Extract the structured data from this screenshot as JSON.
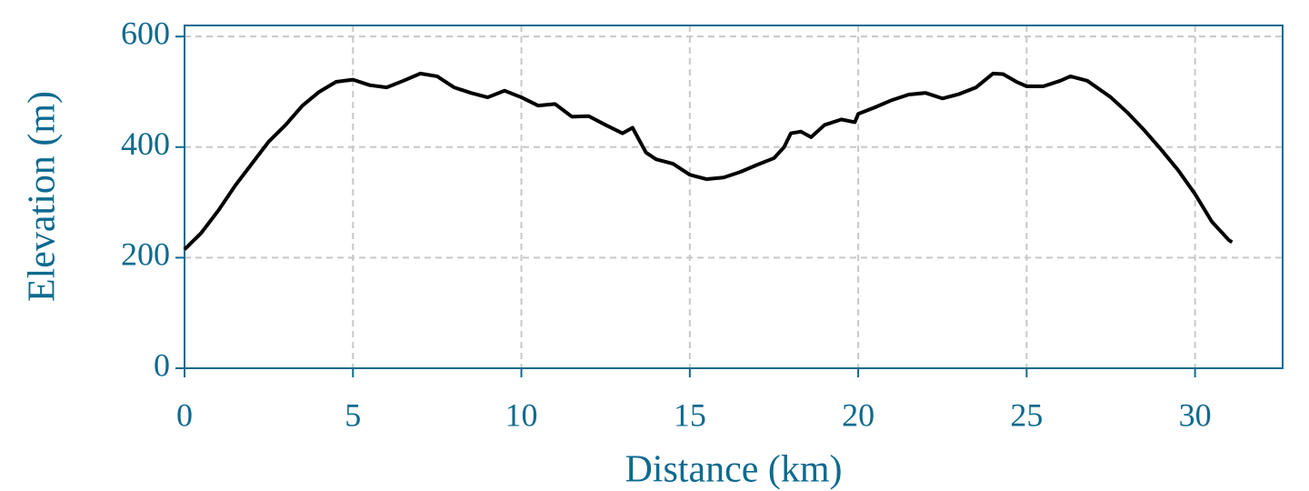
{
  "chart_data": {
    "type": "line",
    "x_label": "Distance (km)",
    "y_label": "Elevation (m)",
    "x": [
      0,
      0.5,
      1,
      1.5,
      2,
      2.5,
      3,
      3.5,
      4,
      4.5,
      5,
      5.5,
      6,
      6.5,
      7,
      7.5,
      8,
      8.5,
      9,
      9.5,
      10,
      10.5,
      11,
      11.5,
      12,
      12.5,
      13,
      13.3,
      13.7,
      14,
      14.5,
      15,
      15.5,
      16,
      16.5,
      17,
      17.5,
      17.8,
      18,
      18.3,
      18.6,
      19,
      19.5,
      19.9,
      20,
      20.5,
      21,
      21.5,
      22,
      22.5,
      23,
      23.5,
      24,
      24.3,
      24.7,
      25,
      25.5,
      26,
      26.3,
      26.8,
      27.5,
      28,
      28.5,
      29,
      29.5,
      30,
      30.5,
      31,
      31.1
    ],
    "series": [
      {
        "name": "Elevation",
        "color": "#000000",
        "values": [
          215,
          245,
          285,
          330,
          370,
          410,
          440,
          475,
          500,
          518,
          522,
          512,
          508,
          520,
          533,
          528,
          508,
          498,
          490,
          502,
          490,
          475,
          478,
          455,
          456,
          440,
          425,
          435,
          390,
          378,
          370,
          350,
          342,
          345,
          355,
          368,
          380,
          400,
          425,
          428,
          418,
          440,
          450,
          445,
          460,
          472,
          485,
          495,
          498,
          488,
          496,
          508,
          533,
          532,
          518,
          510,
          510,
          520,
          528,
          520,
          490,
          462,
          430,
          395,
          358,
          315,
          265,
          232,
          228
        ]
      }
    ],
    "xlim": [
      0,
      32.6
    ],
    "xticks": [
      0,
      5,
      10,
      15,
      20,
      25,
      30
    ],
    "ylim": [
      0,
      620
    ],
    "yticks": [
      0,
      200,
      400,
      600
    ],
    "grid": true,
    "axis_color": "#0e6a8f"
  }
}
